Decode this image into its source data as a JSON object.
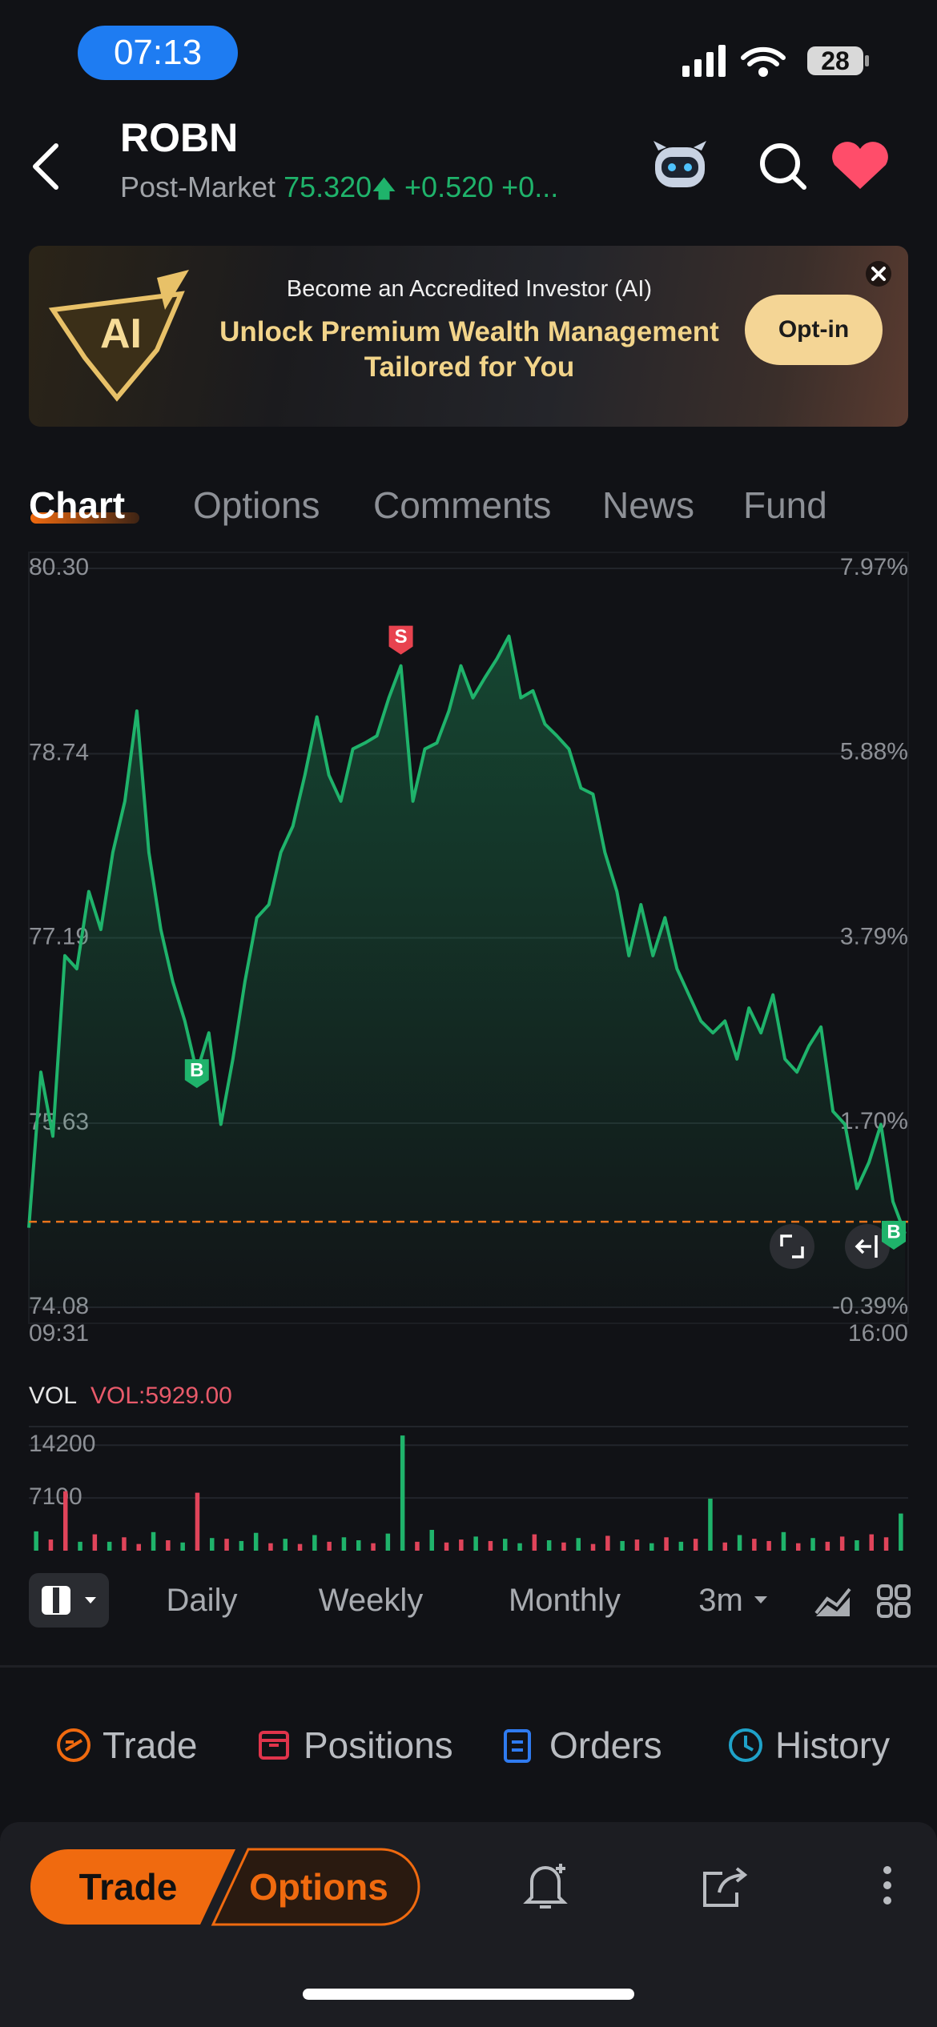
{
  "status_bar": {
    "time": "07:13",
    "battery": "28"
  },
  "header": {
    "symbol": "ROBN",
    "session": "Post-Market",
    "price": "75.320",
    "change": "+0.520",
    "change_pct": "+0..."
  },
  "banner": {
    "logo": "AI",
    "eyebrow": "Become an Accredited Investor (AI)",
    "headline": [
      "Unlock Premium Wealth Management",
      "Tailored for You"
    ],
    "button": "Opt-in"
  },
  "tabs": [
    "Chart",
    "Options",
    "Comments",
    "News",
    "Fund"
  ],
  "chart_data": [
    {
      "type": "line",
      "color": "#1fb36b",
      "categories": [
        "09:31",
        null,
        null,
        null,
        null,
        null,
        null,
        null,
        null,
        null,
        null,
        null,
        null,
        null,
        null,
        null,
        null,
        null,
        null,
        null,
        null,
        null,
        null,
        null,
        null,
        null,
        null,
        null,
        null,
        null,
        null,
        null,
        null,
        null,
        null,
        null,
        null,
        null,
        null,
        null,
        null,
        null,
        null,
        null,
        null,
        null,
        null,
        null,
        null,
        null,
        null,
        null,
        null,
        null,
        null,
        null,
        null,
        null,
        null,
        null,
        null,
        null,
        null,
        null,
        null,
        null,
        null,
        null,
        null,
        null,
        null,
        null,
        null,
        "16:00"
      ],
      "values": [
        74.75,
        76.06,
        75.52,
        77.04,
        76.93,
        77.58,
        77.26,
        77.91,
        78.34,
        79.1,
        77.91,
        77.26,
        76.82,
        76.49,
        76.06,
        76.39,
        75.62,
        76.17,
        76.82,
        77.36,
        77.47,
        77.91,
        78.13,
        78.56,
        79.05,
        78.56,
        78.34,
        78.78,
        78.83,
        78.89,
        79.21,
        79.48,
        78.34,
        78.78,
        78.83,
        79.1,
        79.48,
        79.21,
        79.38,
        79.54,
        79.73,
        79.21,
        79.27,
        78.99,
        78.89,
        78.78,
        78.45,
        78.4,
        77.91,
        77.58,
        77.04,
        77.47,
        77.04,
        77.36,
        76.93,
        76.71,
        76.49,
        76.39,
        76.49,
        76.17,
        76.6,
        76.39,
        76.71,
        76.17,
        76.06,
        76.28,
        76.44,
        75.73,
        75.62,
        75.08,
        75.3,
        75.62,
        74.97,
        74.7
      ],
      "ylim": [
        74.08,
        80.3
      ],
      "yticks": [
        {
          "value": 80.3,
          "label": "80.30"
        },
        78.74,
        77.19,
        75.63,
        74.08
      ],
      "y2lim": [
        -0.39,
        7.97
      ],
      "y2ticks": [
        {
          "value": 7.97,
          "label": "7.97%"
        },
        {
          "value": 5.88,
          "label": "5.88%"
        },
        {
          "value": 3.79,
          "label": "3.79%"
        },
        {
          "value": 1.7,
          "label": "1.70%"
        },
        {
          "value": -0.39,
          "label": "-0.39%"
        }
      ],
      "baseline": 74.8,
      "baseline_color": "#e8741c",
      "grid": true,
      "markers": [
        {
          "label": "B",
          "point": 14,
          "color": "#1fb36b"
        },
        {
          "label": "S",
          "point": 31,
          "color": "#e8434f"
        },
        {
          "label": "B",
          "point": 73,
          "color": "#1fb36b"
        }
      ]
    },
    {
      "type": "bar",
      "title": "VOL",
      "subtitle": "VOL:5929.00",
      "values": [
        2600,
        1500,
        8000,
        1200,
        2200,
        1200,
        1800,
        900,
        2500,
        1400,
        1100,
        7800,
        1700,
        1600,
        1300,
        2400,
        1000,
        1600,
        900,
        2100,
        1200,
        1800,
        1400,
        1000,
        2300,
        15500,
        1200,
        2800,
        1100,
        1500,
        1900,
        1300,
        1600,
        1000,
        2200,
        1400,
        1100,
        1700,
        900,
        2000,
        1300,
        1500,
        1000,
        1800,
        1200,
        1600,
        7000,
        1100,
        2100,
        1600,
        1300,
        2500,
        1000,
        1700,
        1200,
        1900,
        1400,
        2200,
        1800,
        5000
      ],
      "colors": [
        "#1fb36b",
        "#e0445a",
        "#e0445a",
        "#1fb36b",
        "#e0445a",
        "#1fb36b",
        "#e0445a",
        "#e0445a",
        "#1fb36b",
        "#e0445a",
        "#1fb36b",
        "#e0445a",
        "#1fb36b",
        "#e0445a",
        "#1fb36b",
        "#1fb36b",
        "#e0445a",
        "#1fb36b",
        "#e0445a",
        "#1fb36b",
        "#e0445a",
        "#1fb36b",
        "#1fb36b",
        "#e0445a",
        "#1fb36b",
        "#1fb36b",
        "#e0445a",
        "#1fb36b",
        "#e0445a",
        "#e0445a",
        "#1fb36b",
        "#e0445a",
        "#1fb36b",
        "#1fb36b",
        "#e0445a",
        "#1fb36b",
        "#e0445a",
        "#1fb36b",
        "#e0445a",
        "#e0445a",
        "#1fb36b",
        "#e0445a",
        "#1fb36b",
        "#e0445a",
        "#1fb36b",
        "#e0445a",
        "#1fb36b",
        "#e0445a",
        "#1fb36b",
        "#e0445a",
        "#e0445a",
        "#1fb36b",
        "#e0445a",
        "#1fb36b",
        "#e0445a",
        "#e0445a",
        "#1fb36b",
        "#e0445a",
        "#e0445a",
        "#1fb36b"
      ],
      "ylim": [
        0,
        16700
      ],
      "yticks": [
        7100,
        14200
      ],
      "grid": true
    }
  ],
  "periods": [
    "Daily",
    "Weekly",
    "Monthly",
    "3m"
  ],
  "shortcuts": [
    "Trade",
    "Positions",
    "Orders",
    "History"
  ],
  "actions": {
    "trade": "Trade",
    "options": "Options"
  }
}
